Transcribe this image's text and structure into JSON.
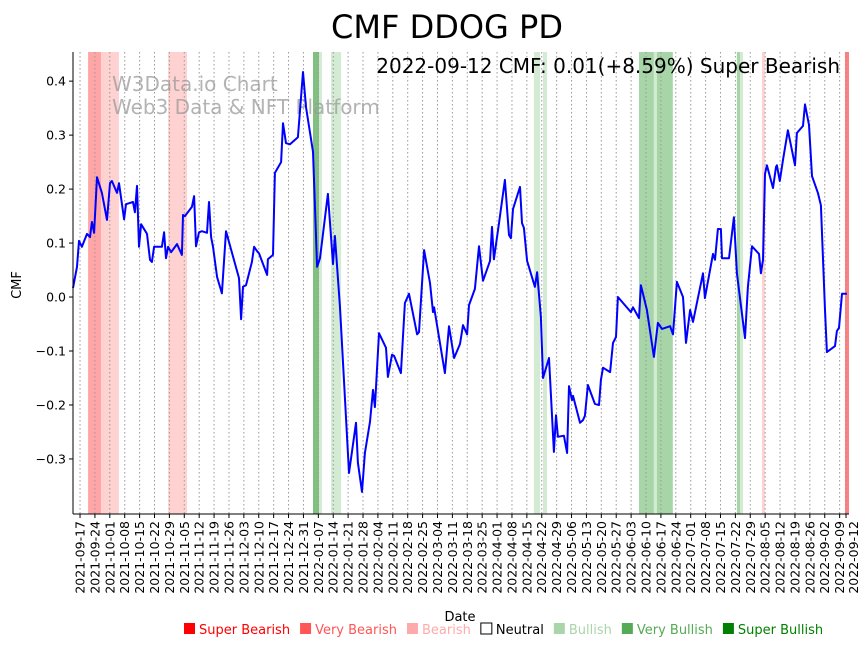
{
  "chart_data": {
    "type": "line",
    "title": "CMF DDOG PD",
    "annotation": "2022-09-12 CMF: 0.01(+8.59%) Super Bearish",
    "watermark": [
      "W3Data.io Chart",
      "Web3 Data & NFT Platform"
    ],
    "xlabel": "Date",
    "ylabel": "CMF",
    "x_unit": "days since 2021-09-17",
    "xlim": [
      -3.3,
      361.4
    ],
    "ylim": [
      -0.402,
      0.454
    ],
    "yticks": [
      -0.3,
      -0.2,
      -0.1,
      0.0,
      0.1,
      0.2,
      0.3,
      0.4
    ],
    "ytick_labels": [
      "−0.3",
      "−0.2",
      "−0.1",
      "0.0",
      "0.1",
      "0.2",
      "0.3",
      "0.4"
    ],
    "xtick_labels": [
      "2021-09-17",
      "2021-09-24",
      "2021-10-01",
      "2021-10-08",
      "2021-10-15",
      "2021-10-22",
      "2021-10-29",
      "2021-11-05",
      "2021-11-12",
      "2021-11-19",
      "2021-11-26",
      "2021-12-03",
      "2021-12-10",
      "2021-12-17",
      "2021-12-24",
      "2021-12-31",
      "2022-01-07",
      "2022-01-14",
      "2022-01-21",
      "2022-01-28",
      "2022-02-04",
      "2022-02-11",
      "2022-02-18",
      "2022-02-25",
      "2022-03-04",
      "2022-03-11",
      "2022-03-18",
      "2022-03-25",
      "2022-04-01",
      "2022-04-08",
      "2022-04-15",
      "2022-04-22",
      "2022-04-29",
      "2022-05-06",
      "2022-05-13",
      "2022-05-20",
      "2022-05-27",
      "2022-06-03",
      "2022-06-10",
      "2022-06-17",
      "2022-06-24",
      "2022-07-01",
      "2022-07-08",
      "2022-07-15",
      "2022-07-22",
      "2022-07-29",
      "2022-08-05",
      "2022-08-12",
      "2022-08-19",
      "2022-08-26",
      "2022-09-02",
      "2022-09-09",
      "2022-09-12"
    ],
    "xtick_days": [
      0,
      7,
      14,
      21,
      28,
      35,
      42,
      49,
      56,
      63,
      70,
      77,
      84,
      91,
      98,
      105,
      112,
      119,
      126,
      133,
      140,
      147,
      154,
      161,
      168,
      175,
      182,
      189,
      196,
      203,
      210,
      217,
      224,
      231,
      238,
      245,
      252,
      259,
      266,
      273,
      280,
      287,
      294,
      301,
      308,
      315,
      322,
      329,
      336,
      343,
      350,
      357,
      360
    ],
    "grid": "vertical dotted",
    "series": [
      {
        "name": "CMF",
        "color": "#0000ff",
        "points": [
          [
            -3.3,
            0.017
          ],
          [
            -1.4,
            0.056
          ],
          [
            -0.5,
            0.104
          ],
          [
            0.9,
            0.093
          ],
          [
            3.3,
            0.117
          ],
          [
            4.7,
            0.111
          ],
          [
            5.6,
            0.139
          ],
          [
            6.6,
            0.119
          ],
          [
            8.0,
            0.222
          ],
          [
            10.3,
            0.193
          ],
          [
            12.7,
            0.143
          ],
          [
            14.1,
            0.211
          ],
          [
            15.0,
            0.215
          ],
          [
            17.4,
            0.193
          ],
          [
            18.3,
            0.211
          ],
          [
            20.7,
            0.144
          ],
          [
            21.6,
            0.172
          ],
          [
            24.9,
            0.176
          ],
          [
            25.8,
            0.157
          ],
          [
            26.8,
            0.206
          ],
          [
            27.7,
            0.093
          ],
          [
            28.7,
            0.135
          ],
          [
            31.5,
            0.117
          ],
          [
            32.9,
            0.069
          ],
          [
            33.8,
            0.065
          ],
          [
            34.8,
            0.093
          ],
          [
            38.5,
            0.093
          ],
          [
            39.5,
            0.12
          ],
          [
            40.4,
            0.072
          ],
          [
            41.4,
            0.093
          ],
          [
            42.8,
            0.083
          ],
          [
            45.6,
            0.098
          ],
          [
            47.9,
            0.078
          ],
          [
            48.4,
            0.152
          ],
          [
            49.3,
            0.15
          ],
          [
            52.6,
            0.167
          ],
          [
            53.6,
            0.187
          ],
          [
            54.5,
            0.094
          ],
          [
            55.9,
            0.12
          ],
          [
            57.3,
            0.122
          ],
          [
            59.7,
            0.119
          ],
          [
            60.6,
            0.176
          ],
          [
            61.6,
            0.111
          ],
          [
            62.5,
            0.093
          ],
          [
            64.4,
            0.037
          ],
          [
            66.7,
            0.007
          ],
          [
            68.6,
            0.122
          ],
          [
            74.7,
            0.035
          ],
          [
            75.7,
            -0.041
          ],
          [
            76.6,
            0.019
          ],
          [
            78.0,
            0.022
          ],
          [
            80.8,
            0.065
          ],
          [
            81.8,
            0.093
          ],
          [
            83.2,
            0.085
          ],
          [
            84.1,
            0.081
          ],
          [
            87.9,
            0.041
          ],
          [
            88.3,
            0.07
          ],
          [
            90.7,
            0.078
          ],
          [
            91.6,
            0.23
          ],
          [
            94.5,
            0.25
          ],
          [
            95.4,
            0.322
          ],
          [
            96.8,
            0.285
          ],
          [
            98.7,
            0.283
          ],
          [
            102.4,
            0.296
          ],
          [
            104.8,
            0.417
          ],
          [
            106.2,
            0.352
          ],
          [
            109.5,
            0.269
          ],
          [
            111.4,
            0.056
          ],
          [
            112.8,
            0.072
          ],
          [
            116.5,
            0.191
          ],
          [
            118.9,
            0.061
          ],
          [
            119.8,
            0.113
          ],
          [
            122.2,
            -0.019
          ],
          [
            126.4,
            -0.326
          ],
          [
            129.7,
            -0.233
          ],
          [
            130.6,
            -0.307
          ],
          [
            132.5,
            -0.361
          ],
          [
            133.9,
            -0.289
          ],
          [
            136.3,
            -0.231
          ],
          [
            137.7,
            -0.172
          ],
          [
            138.6,
            -0.204
          ],
          [
            140.5,
            -0.067
          ],
          [
            143.8,
            -0.094
          ],
          [
            144.7,
            -0.148
          ],
          [
            146.6,
            -0.107
          ],
          [
            147.6,
            -0.109
          ],
          [
            150.8,
            -0.141
          ],
          [
            152.7,
            -0.011
          ],
          [
            154.6,
            0.006
          ],
          [
            158.4,
            -0.069
          ],
          [
            159.3,
            -0.065
          ],
          [
            161.7,
            0.087
          ],
          [
            164.5,
            0.026
          ],
          [
            165.9,
            -0.028
          ],
          [
            166.4,
            -0.019
          ],
          [
            171.5,
            -0.141
          ],
          [
            173.4,
            -0.054
          ],
          [
            175.8,
            -0.113
          ],
          [
            178.6,
            -0.087
          ],
          [
            180.0,
            -0.052
          ],
          [
            181.9,
            -0.069
          ],
          [
            182.8,
            -0.015
          ],
          [
            185.6,
            0.015
          ],
          [
            187.5,
            0.094
          ],
          [
            189.4,
            0.03
          ],
          [
            192.7,
            0.067
          ],
          [
            193.6,
            0.13
          ],
          [
            194.5,
            0.07
          ],
          [
            196.9,
            0.137
          ],
          [
            199.7,
            0.217
          ],
          [
            201.6,
            0.115
          ],
          [
            202.5,
            0.109
          ],
          [
            203.5,
            0.163
          ],
          [
            206.8,
            0.204
          ],
          [
            207.7,
            0.137
          ],
          [
            208.6,
            0.128
          ],
          [
            210.1,
            0.067
          ],
          [
            213.8,
            0.019
          ],
          [
            214.8,
            0.046
          ],
          [
            216.6,
            -0.037
          ],
          [
            217.6,
            -0.15
          ],
          [
            220.4,
            -0.113
          ],
          [
            222.7,
            -0.287
          ],
          [
            223.7,
            -0.219
          ],
          [
            224.6,
            -0.259
          ],
          [
            227.4,
            -0.257
          ],
          [
            228.9,
            -0.289
          ],
          [
            229.8,
            -0.165
          ],
          [
            231.2,
            -0.191
          ],
          [
            231.7,
            -0.183
          ],
          [
            235.0,
            -0.233
          ],
          [
            236.4,
            -0.228
          ],
          [
            237.3,
            -0.22
          ],
          [
            238.7,
            -0.163
          ],
          [
            242.0,
            -0.198
          ],
          [
            243.9,
            -0.2
          ],
          [
            244.8,
            -0.154
          ],
          [
            245.8,
            -0.131
          ],
          [
            249.1,
            -0.139
          ],
          [
            250.5,
            -0.085
          ],
          [
            251.9,
            -0.074
          ],
          [
            252.8,
            0.0
          ],
          [
            258.9,
            -0.028
          ],
          [
            259.9,
            -0.019
          ],
          [
            262.7,
            -0.039
          ],
          [
            263.6,
            0.022
          ],
          [
            266.4,
            -0.024
          ],
          [
            269.7,
            -0.111
          ],
          [
            271.6,
            -0.048
          ],
          [
            273.5,
            -0.059
          ],
          [
            277.3,
            -0.054
          ],
          [
            278.7,
            -0.069
          ],
          [
            280.5,
            0.028
          ],
          [
            283.4,
            0.0
          ],
          [
            284.8,
            -0.085
          ],
          [
            286.7,
            -0.024
          ],
          [
            288.1,
            -0.046
          ],
          [
            292.8,
            0.044
          ],
          [
            293.7,
            -0.002
          ],
          [
            297.5,
            0.08
          ],
          [
            298.4,
            0.069
          ],
          [
            299.8,
            0.126
          ],
          [
            301.2,
            0.126
          ],
          [
            301.7,
            0.072
          ],
          [
            305.0,
            0.072
          ],
          [
            307.3,
            0.148
          ],
          [
            308.7,
            0.044
          ],
          [
            312.5,
            -0.076
          ],
          [
            313.9,
            0.019
          ],
          [
            315.8,
            0.094
          ],
          [
            319.1,
            0.08
          ],
          [
            320.0,
            0.044
          ],
          [
            321.0,
            0.069
          ],
          [
            321.9,
            0.228
          ],
          [
            322.8,
            0.244
          ],
          [
            325.7,
            0.202
          ],
          [
            327.1,
            0.241
          ],
          [
            327.5,
            0.244
          ],
          [
            328.9,
            0.215
          ],
          [
            330.4,
            0.254
          ],
          [
            332.7,
            0.309
          ],
          [
            336.0,
            0.244
          ],
          [
            336.9,
            0.304
          ],
          [
            339.8,
            0.317
          ],
          [
            340.7,
            0.357
          ],
          [
            342.6,
            0.319
          ],
          [
            344.0,
            0.224
          ],
          [
            346.8,
            0.193
          ],
          [
            348.2,
            0.17
          ],
          [
            350.1,
            -0.024
          ],
          [
            351.0,
            -0.102
          ],
          [
            354.8,
            -0.091
          ],
          [
            355.7,
            -0.063
          ],
          [
            356.7,
            -0.057
          ],
          [
            358.1,
            0.006
          ],
          [
            360.4,
            0.006
          ]
        ]
      }
    ],
    "bands": [
      {
        "start": 3.8,
        "end": 9.9,
        "signal": "very_bearish"
      },
      {
        "start": 9.9,
        "end": 18.3,
        "signal": "bearish"
      },
      {
        "start": 41.4,
        "end": 50.3,
        "signal": "bearish"
      },
      {
        "start": 109.5,
        "end": 112.3,
        "signal": "super_bullish"
      },
      {
        "start": 112.3,
        "end": 113.7,
        "signal": "bullish"
      },
      {
        "start": 118.0,
        "end": 122.7,
        "signal": "bullish"
      },
      {
        "start": 213.3,
        "end": 216.2,
        "signal": "bullish"
      },
      {
        "start": 217.6,
        "end": 219.5,
        "signal": "bullish"
      },
      {
        "start": 262.7,
        "end": 269.7,
        "signal": "very_bullish"
      },
      {
        "start": 269.7,
        "end": 271.1,
        "signal": "bullish"
      },
      {
        "start": 271.1,
        "end": 278.6,
        "signal": "very_bullish"
      },
      {
        "start": 308.7,
        "end": 310.2,
        "signal": "very_bullish"
      },
      {
        "start": 310.2,
        "end": 311.6,
        "signal": "bullish"
      },
      {
        "start": 320.5,
        "end": 321.9,
        "signal": "bearish"
      },
      {
        "start": 359.5,
        "end": 361.4,
        "signal": "super_bearish"
      }
    ],
    "band_colors": {
      "super_bearish": "#ff8080",
      "very_bearish": "#ffa5a5",
      "bearish": "#ffd2d2",
      "bullish": "#d3ead3",
      "very_bullish": "#a8d5a8",
      "super_bullish": "#80c080"
    },
    "legend": {
      "placement": "bottom",
      "items": [
        {
          "label": "Super Bearish",
          "color": "#ff0000",
          "text_color": "#ff0000"
        },
        {
          "label": "Very Bearish",
          "color": "#ff5555",
          "text_color": "#ff5555"
        },
        {
          "label": "Bearish",
          "color": "#ffaaaa",
          "text_color": "#ffaaaa"
        },
        {
          "label": "Neutral",
          "color": "#ffffff",
          "text_color": "#000000"
        },
        {
          "label": "Bullish",
          "color": "#aad4aa",
          "text_color": "#aad4aa"
        },
        {
          "label": "Very Bullish",
          "color": "#55aa55",
          "text_color": "#55aa55"
        },
        {
          "label": "Super Bullish",
          "color": "#008000",
          "text_color": "#008000"
        }
      ]
    }
  }
}
